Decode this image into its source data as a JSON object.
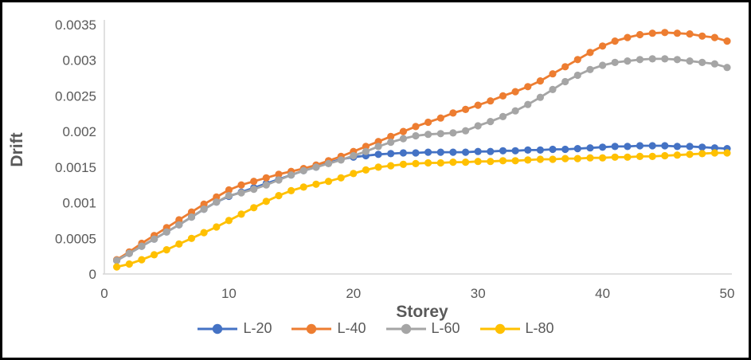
{
  "chart_data": {
    "type": "line",
    "title": "",
    "xlabel": "Storey",
    "ylabel": "Drift",
    "x": [
      1,
      2,
      3,
      4,
      5,
      6,
      7,
      8,
      9,
      10,
      11,
      12,
      13,
      14,
      15,
      16,
      17,
      18,
      19,
      20,
      21,
      22,
      23,
      24,
      25,
      26,
      27,
      28,
      29,
      30,
      31,
      32,
      33,
      34,
      35,
      36,
      37,
      38,
      39,
      40,
      41,
      42,
      43,
      44,
      45,
      46,
      47,
      48,
      49,
      50
    ],
    "xlim": [
      0,
      50
    ],
    "ylim": [
      0,
      0.0035
    ],
    "x_ticks": [
      0,
      10,
      20,
      30,
      40,
      50
    ],
    "y_ticks": [
      "0",
      "0.0005",
      "0.001",
      "0.0015",
      "0.002",
      "0.0025",
      "0.003",
      "0.0035"
    ],
    "y_tick_values": [
      0,
      0.0005,
      0.001,
      0.0015,
      0.002,
      0.0025,
      0.003,
      0.0035
    ],
    "grid": false,
    "legend_position": "bottom",
    "axis_color": "#D6D6D6",
    "tick_label_color": "#595959",
    "series": [
      {
        "name": "L-20",
        "color": "#4472C4",
        "values": [
          0.00019,
          0.00029,
          0.00039,
          0.00049,
          0.00059,
          0.00069,
          0.0008,
          0.00091,
          0.00101,
          0.00109,
          0.00115,
          0.00121,
          0.00127,
          0.00133,
          0.00139,
          0.00145,
          0.0015,
          0.00156,
          0.00161,
          0.00164,
          0.00166,
          0.00168,
          0.00169,
          0.0017,
          0.0017,
          0.00171,
          0.00171,
          0.00171,
          0.00171,
          0.00172,
          0.00172,
          0.00173,
          0.00173,
          0.00174,
          0.00174,
          0.00175,
          0.00175,
          0.00176,
          0.00177,
          0.00178,
          0.00179,
          0.00179,
          0.0018,
          0.0018,
          0.0018,
          0.00179,
          0.00179,
          0.00178,
          0.00177,
          0.00176
        ]
      },
      {
        "name": "L-40",
        "color": "#ED7D31",
        "values": [
          0.0002,
          0.00031,
          0.00043,
          0.00054,
          0.00065,
          0.00076,
          0.00087,
          0.00098,
          0.00108,
          0.00118,
          0.00125,
          0.0013,
          0.00135,
          0.0014,
          0.00144,
          0.00148,
          0.00153,
          0.00159,
          0.00165,
          0.00172,
          0.00179,
          0.00186,
          0.00193,
          0.002,
          0.00207,
          0.00213,
          0.00219,
          0.00226,
          0.00231,
          0.00237,
          0.00243,
          0.0025,
          0.00256,
          0.00263,
          0.00271,
          0.00281,
          0.00291,
          0.00301,
          0.00311,
          0.0032,
          0.00327,
          0.00332,
          0.00336,
          0.00338,
          0.00339,
          0.00338,
          0.00337,
          0.00334,
          0.00332,
          0.00327
        ]
      },
      {
        "name": "L-60",
        "color": "#A5A5A5",
        "values": [
          0.00019,
          0.00029,
          0.00039,
          0.00049,
          0.00059,
          0.00069,
          0.0008,
          0.00091,
          0.00101,
          0.0011,
          0.00114,
          0.00119,
          0.00125,
          0.00132,
          0.00139,
          0.00145,
          0.0015,
          0.00155,
          0.0016,
          0.00166,
          0.00172,
          0.00179,
          0.00185,
          0.0019,
          0.00194,
          0.00196,
          0.00197,
          0.00198,
          0.00201,
          0.00208,
          0.00214,
          0.00221,
          0.00229,
          0.00238,
          0.00248,
          0.00259,
          0.0027,
          0.00279,
          0.00287,
          0.00293,
          0.00297,
          0.00299,
          0.00301,
          0.00302,
          0.00302,
          0.00301,
          0.00299,
          0.00297,
          0.00295,
          0.0029
        ]
      },
      {
        "name": "L-80",
        "color": "#FFC000",
        "values": [
          0.0001,
          0.00014,
          0.0002,
          0.00027,
          0.00034,
          0.00042,
          0.0005,
          0.00058,
          0.00066,
          0.00075,
          0.00084,
          0.00093,
          0.00102,
          0.0011,
          0.00117,
          0.00122,
          0.00126,
          0.0013,
          0.00135,
          0.00141,
          0.00146,
          0.0015,
          0.00152,
          0.00154,
          0.00155,
          0.00156,
          0.00156,
          0.00157,
          0.00157,
          0.00158,
          0.00158,
          0.00159,
          0.00159,
          0.0016,
          0.00161,
          0.00161,
          0.00162,
          0.00162,
          0.00163,
          0.00163,
          0.00164,
          0.00164,
          0.00165,
          0.00165,
          0.00166,
          0.00167,
          0.00168,
          0.00169,
          0.0017,
          0.0017
        ]
      }
    ]
  },
  "frame": {
    "background": "#FFFFFF",
    "border_color": "#000000"
  }
}
